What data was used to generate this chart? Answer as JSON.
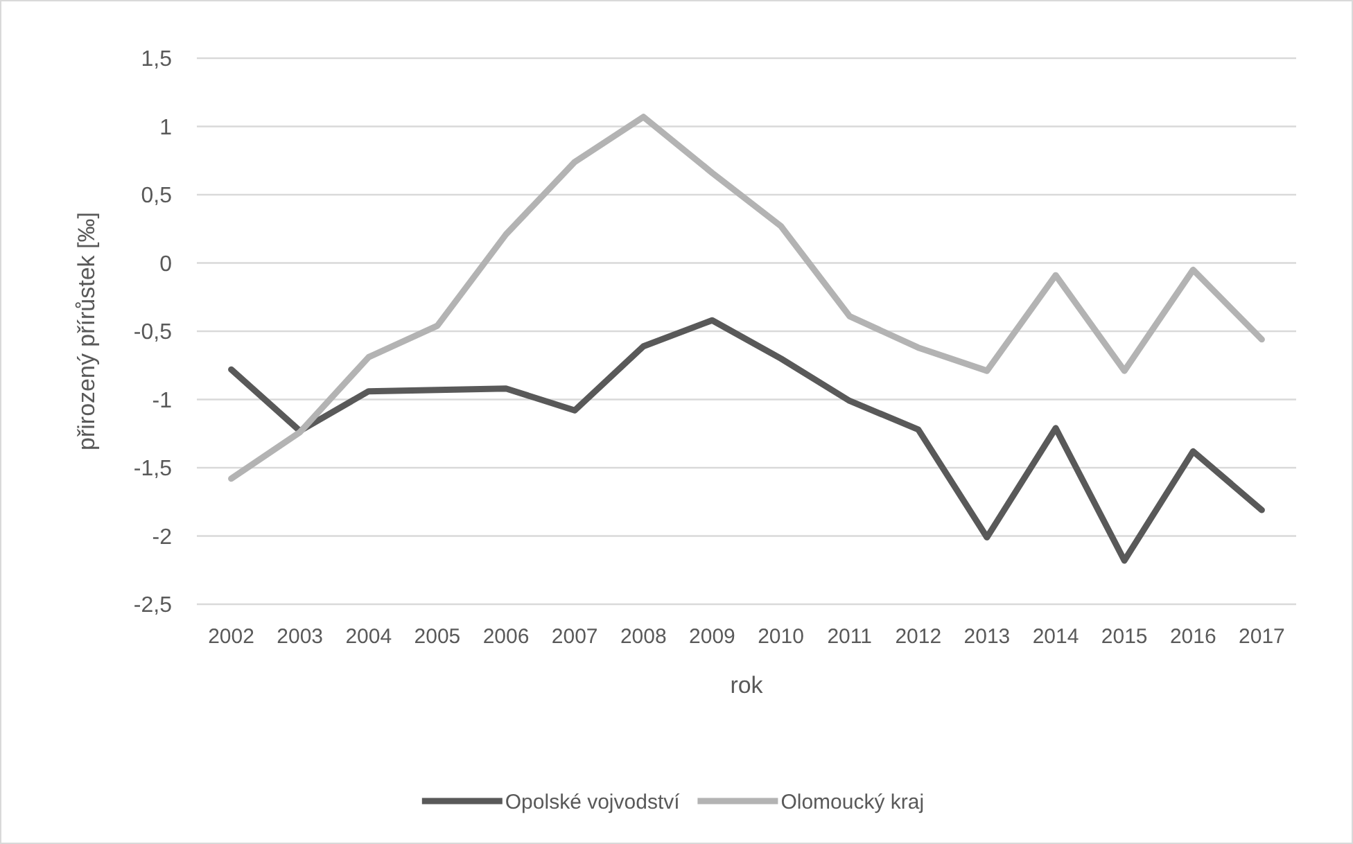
{
  "chart_data": {
    "type": "line",
    "xlabel": "rok",
    "ylabel": "přirozený přírůstek [‰]",
    "categories": [
      "2002",
      "2003",
      "2004",
      "2005",
      "2006",
      "2007",
      "2008",
      "2009",
      "2010",
      "2011",
      "2012",
      "2013",
      "2014",
      "2015",
      "2016",
      "2017"
    ],
    "series": [
      {
        "name": "Opolské vojvodství",
        "color": "#595959",
        "values": [
          -0.78,
          -1.23,
          -0.94,
          -0.93,
          -0.92,
          -1.08,
          -0.61,
          -0.42,
          -0.7,
          -1.01,
          -1.22,
          -2.01,
          -1.21,
          -2.18,
          -1.38,
          -1.81
        ]
      },
      {
        "name": "Olomoucký kraj",
        "color": "#b3b3b3",
        "values": [
          -1.58,
          -1.24,
          -0.69,
          -0.46,
          0.21,
          0.74,
          1.07,
          0.66,
          0.27,
          -0.39,
          -0.62,
          -0.79,
          -0.09,
          -0.79,
          -0.05,
          -0.56
        ]
      }
    ],
    "ylim": [
      -2.5,
      1.5
    ],
    "yticks": [
      {
        "value": -2.5,
        "label": "-2,5"
      },
      {
        "value": -2,
        "label": "-2"
      },
      {
        "value": -1.5,
        "label": "-1,5"
      },
      {
        "value": -1,
        "label": "-1"
      },
      {
        "value": -0.5,
        "label": "-0,5"
      },
      {
        "value": 0,
        "label": "0"
      },
      {
        "value": 0.5,
        "label": "0,5"
      },
      {
        "value": 1,
        "label": "1"
      },
      {
        "value": 1.5,
        "label": "1,5"
      }
    ],
    "grid": "y",
    "legend": "bottom",
    "marker": "none",
    "line_style": "solid"
  }
}
